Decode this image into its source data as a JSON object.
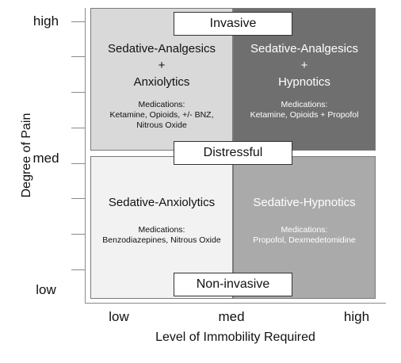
{
  "y_axis": {
    "title": "Degree of Pain",
    "ticks": [
      "high",
      "med",
      "low"
    ]
  },
  "x_axis": {
    "title": "Level of Immobility Required",
    "ticks": [
      "low",
      "med",
      "high"
    ]
  },
  "labels": {
    "top": "Invasive",
    "middle": "Distressful",
    "bottom": "Non-invasive"
  },
  "quadrants": {
    "top_left": {
      "title": "Sedative-Analgesics\n+\nAnxiolytics",
      "med_label": "Medications:",
      "meds": "Ketamine, Opioids, +/- BNZ,\nNitrous Oxide"
    },
    "top_right": {
      "title": "Sedative-Analgesics\n+\nHypnotics",
      "med_label": "Medications:",
      "meds": "Ketamine, Opioids + Propofol"
    },
    "bottom_left": {
      "title": "Sedative-Anxiolytics",
      "med_label": "Medications:",
      "meds": "Benzodiazepines, Nitrous Oxide"
    },
    "bottom_right": {
      "title": "Sedative-Hypnotics",
      "med_label": "Medications:",
      "meds": "Propofol, Dexmedetomidine"
    }
  },
  "colors": {
    "top_left": "#d9d9d9",
    "top_right": "#6f6f6f",
    "bottom_left": "#f2f2f2",
    "bottom_right": "#aaaaaa"
  }
}
